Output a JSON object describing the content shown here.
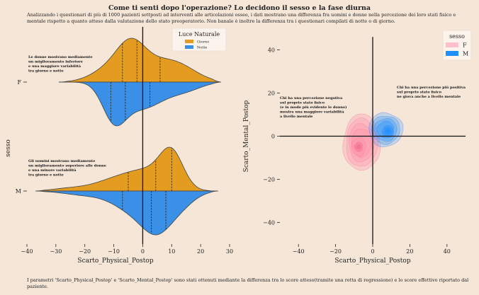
{
  "figure": {
    "title": "Come ti senti dopo l'operazione? Lo decidono il sesso e la fase diurna",
    "subtitle": "Analizzando i questionari di più di 1000 pazienti sottposti ad interventi alle articolazioni ossee, i dati mostrano una differenza fra uomini e donne nella percezione dei loro stati fisico e mentale rispetto a quanto atteso dalla valutazione dello stato preoperatorio. Non banale è inoltre la differenza tra i questionari compilati di notte o di giorno.",
    "footer": "I parametri 'Scarto_Physical_Postop' e 'Scarto_Mental_Postop' sono stati ottenuti mediante la differenza tra lo score atteso(tramite una retta di regressione) e lo score effettivo riportato dal paziente."
  },
  "colors": {
    "background": "#f5e6d8",
    "giorno": "#e39c20",
    "notte": "#3a8fe6",
    "F": "#ffc0cb",
    "M": "#1e90ff"
  },
  "chart_data": [
    {
      "type": "violin",
      "xlabel": "Scarto_Physical_Postop",
      "ylabel": "sesso",
      "categories": [
        "F",
        "M"
      ],
      "xlim": [
        -40,
        30
      ],
      "xticks": [
        -40,
        -30,
        -20,
        -10,
        0,
        10,
        20,
        30
      ],
      "legend": {
        "title": "Luce Naturale",
        "placement": "top-right",
        "entries": [
          "Giorno",
          "Notte"
        ]
      },
      "split": true,
      "quartiles": {
        "F": {
          "Giorno": [
            -7,
            -2,
            6
          ],
          "Notte": [
            -11,
            -6,
            2.5
          ]
        },
        "M": {
          "Giorno": [
            -5,
            4.5,
            10
          ],
          "Notte": [
            -7,
            3,
            8
          ]
        }
      },
      "annotations": [
        {
          "anchor": "F",
          "lines": [
            "Le donne mostrano mediamente",
            "un miglioramento inferiore",
            "e una maggiore variabilità",
            "tra giorno e notte"
          ]
        },
        {
          "anchor": "M",
          "lines": [
            "Gli uomini mostrano mediamente",
            "un miglioramento superiore alle donne",
            "e una minore variabilità",
            "tra giorno e notte"
          ]
        }
      ]
    },
    {
      "type": "kde",
      "xlabel": "Scarto_Physical_Postop",
      "ylabel": "Scarto_Mental_Postop",
      "xlim": [
        -50,
        50
      ],
      "ylim": [
        -50,
        50
      ],
      "xticks": [
        -40,
        -20,
        0,
        20,
        40
      ],
      "yticks": [
        -40,
        -20,
        0,
        20,
        40
      ],
      "legend": {
        "title": "sesso",
        "placement": "top-right"
      },
      "series": [
        {
          "name": "F",
          "center": [
            -6,
            -3
          ]
        },
        {
          "name": "M",
          "center": [
            7,
            3
          ]
        }
      ],
      "annotations": [
        {
          "anchor": "left",
          "lines": [
            "Chi ha una percezione negativa",
            "sul proprio stato fisico",
            "(e in modo più evidente le donne)",
            "mostra una maggiore variabilità",
            " a livello mentale"
          ]
        },
        {
          "anchor": "right",
          "lines": [
            "Chi ha una percezione più positiva",
            "sul proprio stato fisico",
            "ne giova anche a livello mentale"
          ]
        }
      ]
    }
  ]
}
